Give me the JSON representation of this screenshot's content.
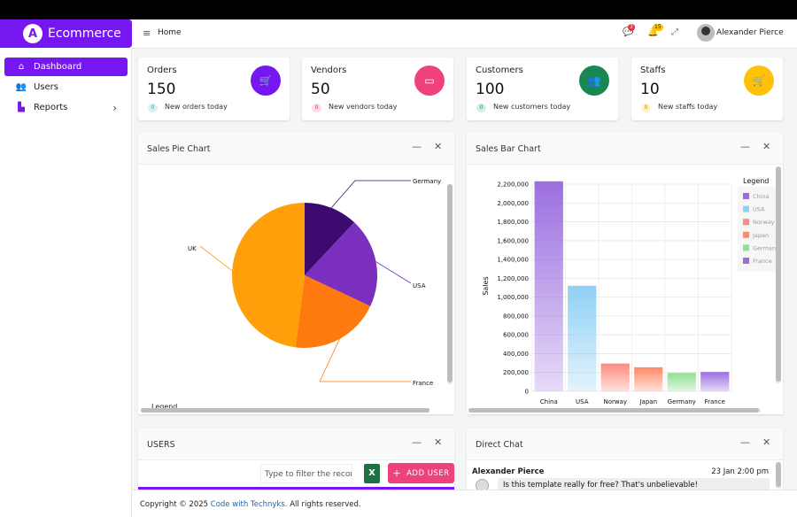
{
  "brand": {
    "name": "Ecommerce",
    "logo_letter": "A",
    "color": "#7616f0"
  },
  "sidebar": {
    "items": [
      {
        "label": "Dashboard",
        "icon": "home-icon",
        "active": true
      },
      {
        "label": "Users",
        "icon": "users-icon",
        "active": false
      },
      {
        "label": "Reports",
        "icon": "chart-icon",
        "active": false
      }
    ]
  },
  "header": {
    "breadcrumb": "Home",
    "messages_count": "3",
    "notifications_count": "15",
    "user_name": "Alexander Pierce"
  },
  "cards": [
    {
      "title": "Orders",
      "value": "150",
      "badge": "0",
      "subtitle": "New orders today",
      "color": "#7616f0",
      "icon": "cart-icon",
      "badge_bg": "#d8f1f5",
      "badge_fg": "#1aa3b8"
    },
    {
      "title": "Vendors",
      "value": "50",
      "badge": "0",
      "subtitle": "New vendors today",
      "color": "#f0427a",
      "icon": "store-icon",
      "badge_bg": "#fbdde5",
      "badge_fg": "#d6336c"
    },
    {
      "title": "Customers",
      "value": "100",
      "badge": "0",
      "subtitle": "New customers today",
      "color": "#198754",
      "icon": "people-icon",
      "badge_bg": "#d6eee2",
      "badge_fg": "#198754"
    },
    {
      "title": "Staffs",
      "value": "10",
      "badge": "0",
      "subtitle": "New staffs today",
      "color": "#ffc107",
      "icon": "cart-icon",
      "badge_bg": "#fff3cd",
      "badge_fg": "#b38600"
    }
  ],
  "pie_panel": {
    "title": "Sales Pie Chart",
    "legend_label": "Legend"
  },
  "bar_panel": {
    "title": "Sales Bar Chart"
  },
  "users_panel": {
    "title": "USERS",
    "filter_placeholder": "Type to filter the records",
    "add_button": "ADD USER",
    "excel_label": "X"
  },
  "chat_panel": {
    "title": "Direct Chat",
    "sender": "Alexander Pierce",
    "time": "23 Jan 2:00 pm",
    "message": "Is this template really for free? That's unbelievable!"
  },
  "footer": {
    "copyright": "Copyright © 2025",
    "link": "Code with Technyks.",
    "rights": "All rights reserved."
  },
  "chart_data": [
    {
      "type": "pie",
      "categories": [
        "Germany",
        "USA",
        "France",
        "UK"
      ],
      "values": [
        12,
        20,
        20,
        48
      ],
      "colors": [
        "#3d0b70",
        "#7b2fbe",
        "#ff7a0e",
        "#ff9f0a"
      ]
    },
    {
      "type": "bar",
      "categories": [
        "China",
        "USA",
        "Norway",
        "Japan",
        "Germany",
        "France"
      ],
      "values": [
        2230000,
        1120000,
        295000,
        255000,
        195000,
        205000
      ],
      "colors": [
        "#9b6ee0",
        "#8fd0f5",
        "#ff8a80",
        "#ff8a65",
        "#8ee08e",
        "#9b6ee0"
      ],
      "ylabel": "Sales",
      "ylim": [
        0,
        2200000
      ],
      "yticks": [
        "0",
        "200,000",
        "400,000",
        "600,000",
        "800,000",
        "1,000,000",
        "1,200,000",
        "1,400,000",
        "1,600,000",
        "1,800,000",
        "2,000,000",
        "2,200,000"
      ],
      "legend_title": "Legend",
      "legend": [
        "China",
        "USA",
        "Norway",
        "Japan",
        "Germany",
        "France"
      ],
      "grid": true
    }
  ]
}
